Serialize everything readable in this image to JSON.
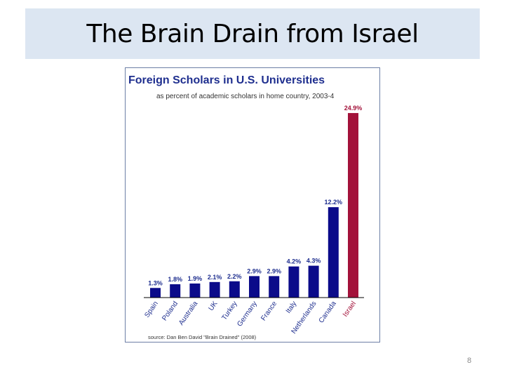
{
  "slide": {
    "title": "The Brain Drain from Israel",
    "page_number": "8"
  },
  "chart_data": {
    "type": "bar",
    "title": "Foreign Scholars in U.S. Universities",
    "subtitle": "as percent of academic scholars in home country, 2003-4",
    "source": "source: Dan Ben David \"Brain Drained\" (2008)",
    "categories": [
      "Spain",
      "Poland",
      "Australia",
      "UK",
      "Turkey",
      "Germany",
      "France",
      "Italy",
      "Netherlands",
      "Canada",
      "Israel"
    ],
    "values": [
      1.3,
      1.8,
      1.9,
      2.1,
      2.2,
      2.9,
      2.9,
      4.2,
      4.3,
      12.2,
      24.9
    ],
    "value_labels": [
      "1.3%",
      "1.8%",
      "1.9%",
      "2.1%",
      "2.2%",
      "2.9%",
      "2.9%",
      "4.2%",
      "4.3%",
      "12.2%",
      "24.9%"
    ],
    "ylim": [
      0,
      25
    ],
    "grid": false,
    "colors": {
      "bar": "#0b0b8a",
      "highlight_bar": "#a3123a",
      "title": "#1f2f8f",
      "highlight_label": "#a3123a",
      "frame": "#6d7fa6"
    },
    "highlight_index": 10
  }
}
